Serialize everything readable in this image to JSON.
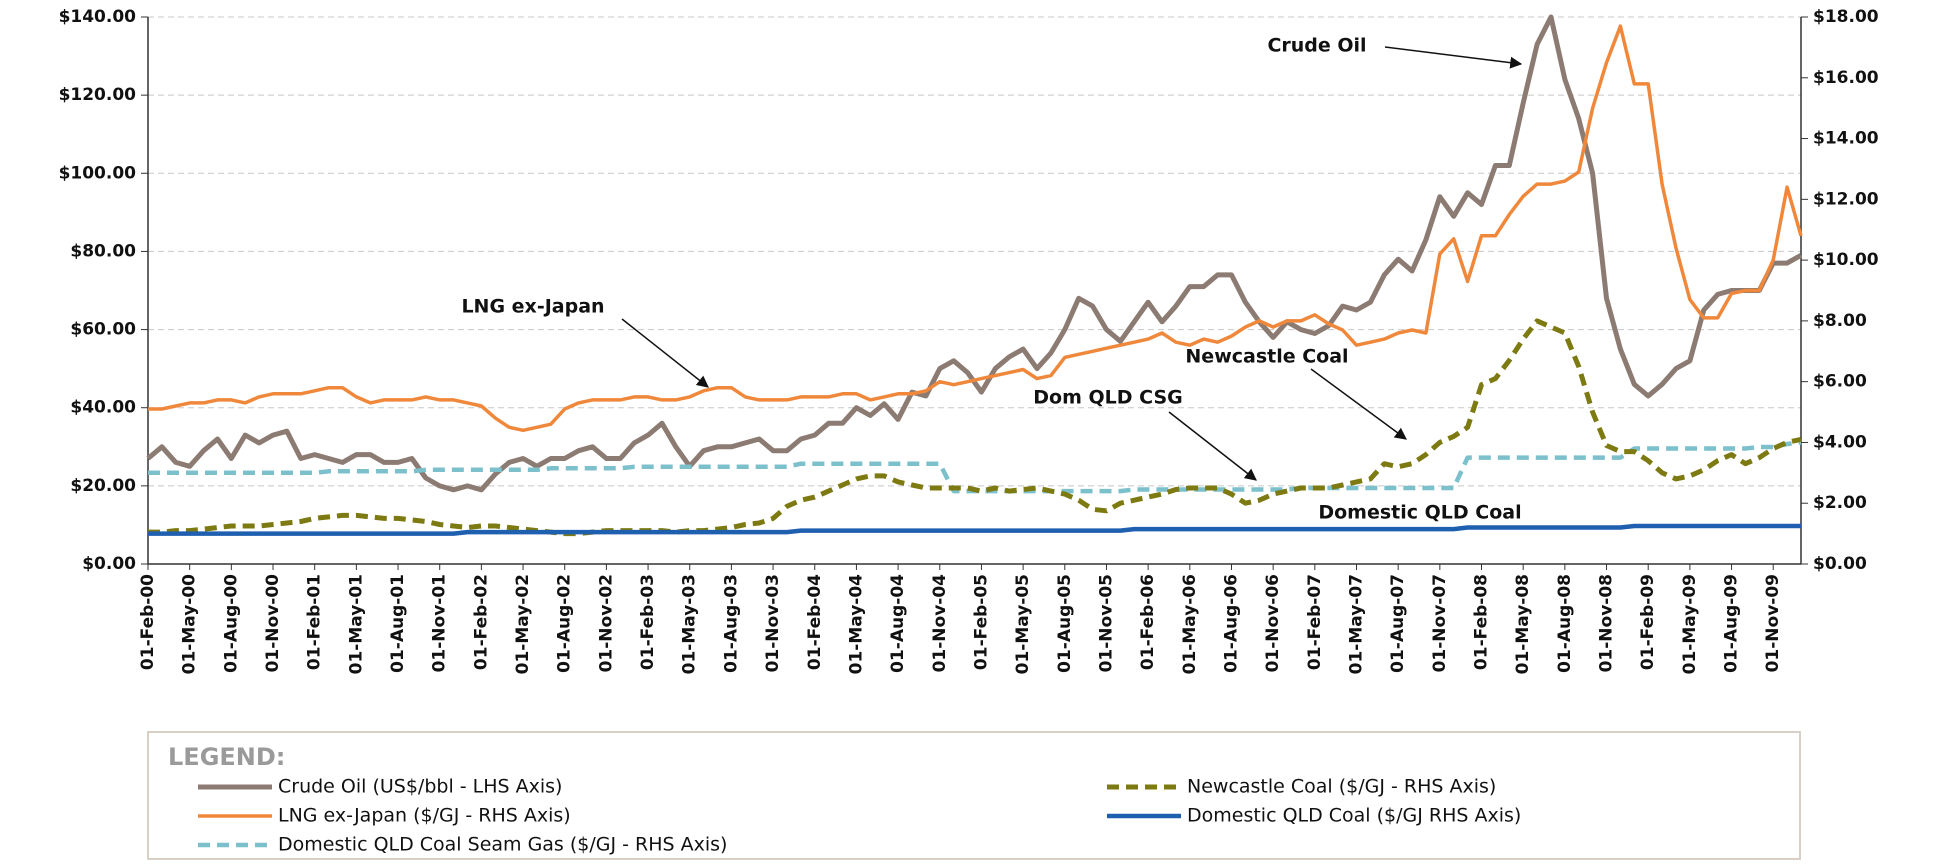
{
  "chart_data": {
    "type": "line",
    "categories": [
      "01-Feb-00",
      null,
      null,
      "01-May-00",
      null,
      null,
      "01-Aug-00",
      null,
      null,
      "01-Nov-00",
      null,
      null,
      "01-Feb-01",
      null,
      null,
      "01-May-01",
      null,
      null,
      "01-Aug-01",
      null,
      null,
      "01-Nov-01",
      null,
      null,
      "01-Feb-02",
      null,
      null,
      "01-May-02",
      null,
      null,
      "01-Aug-02",
      null,
      null,
      "01-Nov-02",
      null,
      null,
      "01-Feb-03",
      null,
      null,
      "01-May-03",
      null,
      null,
      "01-Aug-03",
      null,
      null,
      "01-Nov-03",
      null,
      null,
      "01-Feb-04",
      null,
      null,
      "01-May-04",
      null,
      null,
      "01-Aug-04",
      null,
      null,
      "01-Nov-04",
      null,
      null,
      "01-Feb-05",
      null,
      null,
      "01-May-05",
      null,
      null,
      "01-Aug-05",
      null,
      null,
      "01-Nov-05",
      null,
      null,
      "01-Feb-06",
      null,
      null,
      "01-May-06",
      null,
      null,
      "01-Aug-06",
      null,
      null,
      "01-Nov-06",
      null,
      null,
      "01-Feb-07",
      null,
      null,
      "01-May-07",
      null,
      null,
      "01-Aug-07",
      null,
      null,
      "01-Nov-07",
      null,
      null,
      "01-Feb-08",
      null,
      null,
      "01-May-08",
      null,
      null,
      "01-Aug-08",
      null,
      null,
      "01-Nov-08",
      null,
      null,
      "01-Feb-09",
      null,
      null,
      "01-May-09",
      null,
      null,
      "01-Aug-09",
      null,
      null,
      "01-Nov-09",
      null,
      null
    ],
    "ylim": [
      0,
      140
    ],
    "yticks": [
      {
        "value": 0,
        "label": "$0.00"
      },
      {
        "value": 20,
        "label": "$20.00"
      },
      {
        "value": 40,
        "label": "$40.00"
      },
      {
        "value": 60,
        "label": "$60.00"
      },
      {
        "value": 80,
        "label": "$80.00"
      },
      {
        "value": 100,
        "label": "$100.00"
      },
      {
        "value": 120,
        "label": "$120.00"
      },
      {
        "value": 140,
        "label": "$140.00"
      }
    ],
    "y2lim": [
      0,
      18
    ],
    "y2ticks": [
      {
        "value": 0,
        "label": "$0.00"
      },
      {
        "value": 2,
        "label": "$2.00"
      },
      {
        "value": 4,
        "label": "$4.00"
      },
      {
        "value": 6,
        "label": "$6.00"
      },
      {
        "value": 8,
        "label": "$8.00"
      },
      {
        "value": 10,
        "label": "$10.00"
      },
      {
        "value": 12,
        "label": "$12.00"
      },
      {
        "value": 14,
        "label": "$14.00"
      },
      {
        "value": 16,
        "label": "$16.00"
      },
      {
        "value": 18,
        "label": "$18.00"
      }
    ],
    "grid": true,
    "legend_title": "LEGEND:",
    "series": [
      {
        "name": "Crude Oil (US$/bbl - LHS Axis)",
        "color": "#8c7b72",
        "line_style": "solid",
        "axis": "y",
        "values": [
          27,
          30,
          26,
          25,
          29,
          32,
          27,
          33,
          31,
          33,
          34,
          27,
          28,
          27,
          26,
          28,
          28,
          26,
          26,
          27,
          22,
          20,
          19,
          20,
          19,
          23,
          26,
          27,
          25,
          27,
          27,
          29,
          30,
          27,
          27,
          31,
          33,
          36,
          30,
          25,
          29,
          30,
          30,
          31,
          32,
          29,
          29,
          32,
          33,
          36,
          36,
          40,
          38,
          41,
          37,
          44,
          43,
          50,
          52,
          49,
          44,
          50,
          53,
          55,
          50,
          54,
          60,
          68,
          66,
          60,
          57,
          62,
          67,
          62,
          66,
          71,
          71,
          74,
          74,
          67,
          62,
          58,
          62,
          60,
          59,
          61,
          66,
          65,
          67,
          74,
          78,
          75,
          83,
          94,
          89,
          95,
          92,
          102,
          102,
          118,
          133,
          140,
          124,
          114,
          100,
          68,
          55,
          46,
          43,
          46,
          50,
          52,
          65,
          69,
          70,
          70,
          70,
          77,
          77,
          79
        ]
      },
      {
        "name": "LNG ex-Japan ($/GJ - RHS Axis)",
        "color": "#f0883c",
        "line_style": "solid",
        "axis": "y2",
        "values": [
          5.1,
          5.1,
          5.2,
          5.3,
          5.3,
          5.4,
          5.4,
          5.3,
          5.5,
          5.6,
          5.6,
          5.6,
          5.7,
          5.8,
          5.8,
          5.5,
          5.3,
          5.4,
          5.4,
          5.4,
          5.5,
          5.4,
          5.4,
          5.3,
          5.2,
          4.8,
          4.5,
          4.4,
          4.5,
          4.6,
          5.1,
          5.3,
          5.4,
          5.4,
          5.4,
          5.5,
          5.5,
          5.4,
          5.4,
          5.5,
          5.7,
          5.8,
          5.8,
          5.5,
          5.4,
          5.4,
          5.4,
          5.5,
          5.5,
          5.5,
          5.6,
          5.6,
          5.4,
          5.5,
          5.6,
          5.6,
          5.7,
          6.0,
          5.9,
          6.0,
          6.1,
          6.2,
          6.3,
          6.4,
          6.1,
          6.2,
          6.8,
          6.9,
          7.0,
          7.1,
          7.2,
          7.3,
          7.4,
          7.6,
          7.3,
          7.2,
          7.4,
          7.3,
          7.5,
          7.8,
          8.0,
          7.8,
          8.0,
          8.0,
          8.2,
          7.9,
          7.7,
          7.2,
          7.3,
          7.4,
          7.6,
          7.7,
          7.6,
          10.2,
          10.7,
          9.3,
          10.8,
          10.8,
          11.5,
          12.1,
          12.5,
          12.5,
          12.6,
          12.9,
          15.0,
          16.5,
          17.7,
          15.8,
          15.8,
          12.5,
          10.4,
          8.7,
          8.1,
          8.1,
          8.9,
          9.0,
          9.0,
          10.0,
          12.4,
          10.8
        ]
      },
      {
        "name": "Domestic QLD Coal Seam Gas ($/GJ - RHS Axis)",
        "color": "#7cc0cc",
        "line_style": "dashed",
        "axis": "y2",
        "values": [
          3.0,
          3.0,
          3.0,
          3.0,
          3.0,
          3.0,
          3.0,
          3.0,
          3.0,
          3.0,
          3.0,
          3.0,
          3.0,
          3.05,
          3.05,
          3.05,
          3.05,
          3.05,
          3.05,
          3.05,
          3.1,
          3.1,
          3.1,
          3.1,
          3.1,
          3.1,
          3.1,
          3.1,
          3.1,
          3.15,
          3.15,
          3.15,
          3.15,
          3.15,
          3.15,
          3.2,
          3.2,
          3.2,
          3.2,
          3.2,
          3.2,
          3.2,
          3.2,
          3.2,
          3.2,
          3.2,
          3.2,
          3.3,
          3.3,
          3.3,
          3.3,
          3.3,
          3.3,
          3.3,
          3.3,
          3.3,
          3.3,
          3.3,
          2.4,
          2.4,
          2.4,
          2.4,
          2.4,
          2.4,
          2.4,
          2.4,
          2.4,
          2.4,
          2.4,
          2.4,
          2.4,
          2.45,
          2.45,
          2.45,
          2.45,
          2.45,
          2.45,
          2.45,
          2.45,
          2.45,
          2.45,
          2.45,
          2.45,
          2.5,
          2.5,
          2.5,
          2.5,
          2.5,
          2.5,
          2.5,
          2.5,
          2.5,
          2.5,
          2.5,
          2.5,
          3.5,
          3.5,
          3.5,
          3.5,
          3.5,
          3.5,
          3.5,
          3.5,
          3.5,
          3.5,
          3.5,
          3.5,
          3.8,
          3.8,
          3.8,
          3.8,
          3.8,
          3.8,
          3.8,
          3.8,
          3.8,
          3.85,
          3.85,
          3.95,
          4.0
        ]
      },
      {
        "name": "Newcastle Coal ($/GJ - RHS Axis)",
        "color": "#7d7a12",
        "line_style": "dashed",
        "axis": "y2",
        "values": [
          1.05,
          1.05,
          1.1,
          1.1,
          1.15,
          1.2,
          1.25,
          1.25,
          1.25,
          1.3,
          1.35,
          1.4,
          1.5,
          1.55,
          1.6,
          1.6,
          1.55,
          1.5,
          1.5,
          1.45,
          1.4,
          1.3,
          1.25,
          1.2,
          1.25,
          1.25,
          1.2,
          1.15,
          1.1,
          1.05,
          1.0,
          1.0,
          1.05,
          1.1,
          1.1,
          1.1,
          1.1,
          1.1,
          1.05,
          1.1,
          1.1,
          1.15,
          1.2,
          1.3,
          1.35,
          1.5,
          1.9,
          2.1,
          2.2,
          2.4,
          2.6,
          2.8,
          2.9,
          2.9,
          2.7,
          2.6,
          2.5,
          2.5,
          2.5,
          2.5,
          2.4,
          2.5,
          2.4,
          2.45,
          2.5,
          2.4,
          2.3,
          2.1,
          1.8,
          1.75,
          2.0,
          2.1,
          2.2,
          2.3,
          2.45,
          2.5,
          2.5,
          2.5,
          2.3,
          2.0,
          2.1,
          2.3,
          2.4,
          2.5,
          2.5,
          2.5,
          2.6,
          2.7,
          2.8,
          3.3,
          3.2,
          3.3,
          3.6,
          4.0,
          4.2,
          4.5,
          5.9,
          6.1,
          6.7,
          7.4,
          8.0,
          7.8,
          7.6,
          6.5,
          5.0,
          3.9,
          3.7,
          3.7,
          3.4,
          3.0,
          2.8,
          2.9,
          3.1,
          3.4,
          3.6,
          3.3,
          3.5,
          3.8,
          4.0,
          4.1
        ]
      },
      {
        "name": "Domestic QLD Coal ($/GJ   RHS Axis)",
        "color": "#1f5fb0",
        "line_style": "solid",
        "axis": "y2",
        "values": [
          1.0,
          1.0,
          1.0,
          1.0,
          1.0,
          1.0,
          1.0,
          1.0,
          1.0,
          1.0,
          1.0,
          1.0,
          1.0,
          1.0,
          1.0,
          1.0,
          1.0,
          1.0,
          1.0,
          1.0,
          1.0,
          1.0,
          1.0,
          1.05,
          1.05,
          1.05,
          1.05,
          1.05,
          1.05,
          1.05,
          1.05,
          1.05,
          1.05,
          1.05,
          1.05,
          1.05,
          1.05,
          1.05,
          1.05,
          1.05,
          1.05,
          1.05,
          1.05,
          1.05,
          1.05,
          1.05,
          1.05,
          1.1,
          1.1,
          1.1,
          1.1,
          1.1,
          1.1,
          1.1,
          1.1,
          1.1,
          1.1,
          1.1,
          1.1,
          1.1,
          1.1,
          1.1,
          1.1,
          1.1,
          1.1,
          1.1,
          1.1,
          1.1,
          1.1,
          1.1,
          1.1,
          1.15,
          1.15,
          1.15,
          1.15,
          1.15,
          1.15,
          1.15,
          1.15,
          1.15,
          1.15,
          1.15,
          1.15,
          1.15,
          1.15,
          1.15,
          1.15,
          1.15,
          1.15,
          1.15,
          1.15,
          1.15,
          1.15,
          1.15,
          1.15,
          1.2,
          1.2,
          1.2,
          1.2,
          1.2,
          1.2,
          1.2,
          1.2,
          1.2,
          1.2,
          1.2,
          1.2,
          1.25,
          1.25,
          1.25,
          1.25,
          1.25,
          1.25,
          1.25,
          1.25,
          1.25,
          1.25,
          1.25,
          1.25,
          1.25
        ]
      }
    ],
    "annotations": [
      {
        "text": "Crude Oil"
      },
      {
        "text": "LNG ex-Japan"
      },
      {
        "text": "Newcastle Coal"
      },
      {
        "text": "Dom QLD CSG"
      },
      {
        "text": "Domestic QLD Coal"
      }
    ]
  }
}
